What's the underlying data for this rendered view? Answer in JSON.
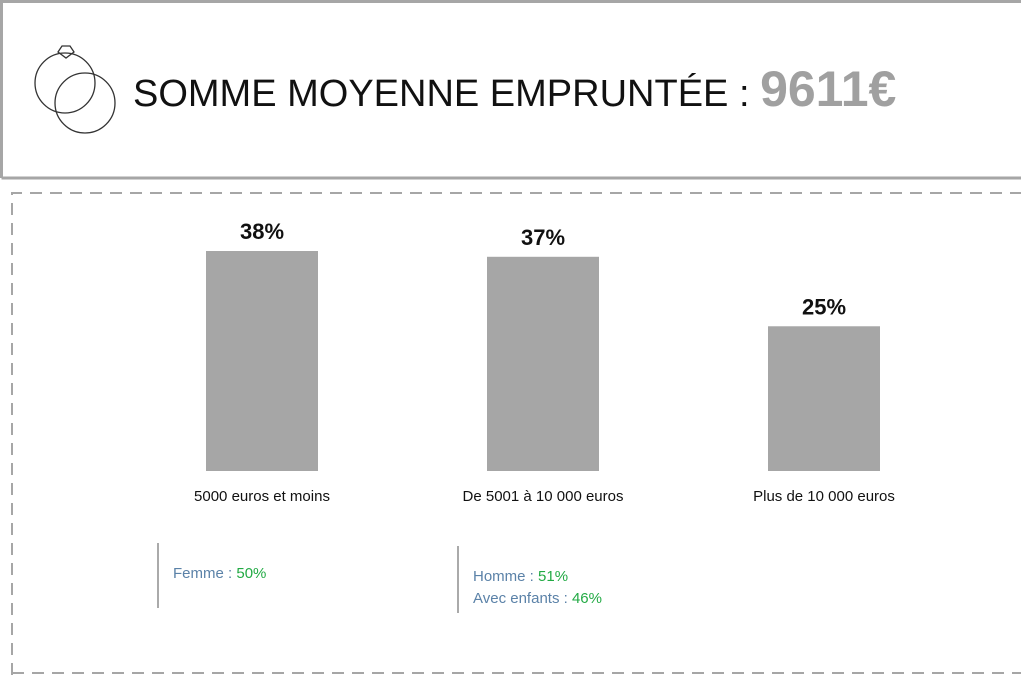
{
  "title": "SOMME MOYENNE EMPRUNTÉE :",
  "amount": "9611€",
  "chart_data": {
    "type": "bar",
    "categories": [
      "5000 euros et moins",
      "De 5001 à 10 000 euros",
      "Plus de 10 000 euros"
    ],
    "values": [
      38,
      37,
      25
    ],
    "value_labels": [
      "38%",
      "37%",
      "25%"
    ],
    "color": "#a6a6a6"
  },
  "notes": [
    [
      {
        "label": "Femme :",
        "value": "50%"
      }
    ],
    [
      {
        "label": "Homme :",
        "value": "51%"
      },
      {
        "label": "Avec enfants :",
        "value": "46%"
      }
    ]
  ]
}
